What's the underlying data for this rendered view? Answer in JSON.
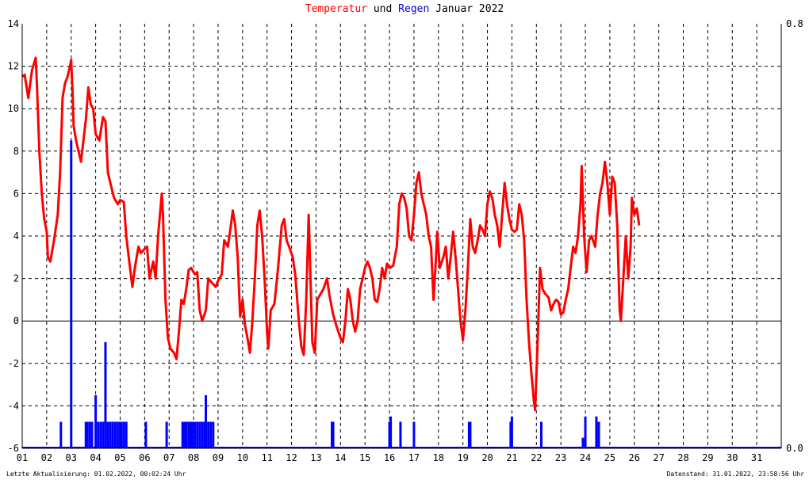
{
  "title": {
    "part1": "Temperatur",
    "part2": " und ",
    "part3": "Regen",
    "part4": " Januar 2022",
    "color_temp": "#ff0000",
    "color_rain": "#0000cc"
  },
  "footer": {
    "left": "Letzte Aktualisierung: 01.02.2022, 00:02:24 Uhr",
    "right": "Datenstand: 31.01.2022, 23:58:56 Uhr"
  },
  "chart_data": {
    "type": "line",
    "title": "Temperatur und Regen Januar 2022",
    "x_tick_labels": [
      "01",
      "02",
      "03",
      "04",
      "05",
      "06",
      "07",
      "08",
      "09",
      "10",
      "11",
      "12",
      "13",
      "14",
      "15",
      "16",
      "17",
      "18",
      "19",
      "20",
      "21",
      "22",
      "23",
      "24",
      "25",
      "26",
      "27",
      "28",
      "29",
      "30",
      "31"
    ],
    "xlim": [
      1,
      32
    ],
    "ylim": [
      -6,
      14
    ],
    "y_ticks": [
      -6,
      -4,
      -2,
      0,
      2,
      4,
      6,
      8,
      10,
      12,
      14
    ],
    "y2lim": [
      0,
      0.8
    ],
    "y2_tick_labels": [
      "0.0",
      "0.8"
    ],
    "grid": true,
    "series": [
      {
        "name": "Temperatur",
        "axis": "left",
        "color": "#ff0000",
        "points": [
          [
            1.0,
            11.5
          ],
          [
            1.1,
            11.6
          ],
          [
            1.25,
            10.5
          ],
          [
            1.4,
            11.8
          ],
          [
            1.55,
            12.4
          ],
          [
            1.6,
            11.2
          ],
          [
            1.7,
            8.0
          ],
          [
            1.8,
            6.0
          ],
          [
            1.9,
            4.8
          ],
          [
            2.0,
            4.2
          ],
          [
            2.05,
            3.0
          ],
          [
            2.15,
            2.8
          ],
          [
            2.3,
            3.8
          ],
          [
            2.45,
            5.0
          ],
          [
            2.55,
            7.0
          ],
          [
            2.65,
            10.5
          ],
          [
            2.75,
            11.2
          ],
          [
            2.85,
            11.5
          ],
          [
            2.95,
            12.0
          ],
          [
            3.0,
            12.3
          ],
          [
            3.05,
            11.0
          ],
          [
            3.1,
            9.2
          ],
          [
            3.2,
            8.5
          ],
          [
            3.3,
            8.0
          ],
          [
            3.4,
            7.5
          ],
          [
            3.5,
            8.5
          ],
          [
            3.6,
            9.5
          ],
          [
            3.7,
            11.0
          ],
          [
            3.8,
            10.2
          ],
          [
            3.9,
            10.0
          ],
          [
            4.0,
            8.8
          ],
          [
            4.15,
            8.5
          ],
          [
            4.3,
            9.6
          ],
          [
            4.4,
            9.4
          ],
          [
            4.5,
            7.0
          ],
          [
            4.6,
            6.5
          ],
          [
            4.75,
            5.8
          ],
          [
            4.9,
            5.5
          ],
          [
            5.0,
            5.7
          ],
          [
            5.15,
            5.6
          ],
          [
            5.25,
            4.0
          ],
          [
            5.35,
            3.0
          ],
          [
            5.5,
            1.6
          ],
          [
            5.6,
            2.5
          ],
          [
            5.75,
            3.5
          ],
          [
            5.85,
            3.2
          ],
          [
            6.0,
            3.4
          ],
          [
            6.1,
            3.5
          ],
          [
            6.2,
            2.0
          ],
          [
            6.35,
            2.8
          ],
          [
            6.45,
            2.0
          ],
          [
            6.55,
            4.0
          ],
          [
            6.7,
            6.0
          ],
          [
            6.75,
            5.0
          ],
          [
            6.85,
            1.0
          ],
          [
            6.95,
            -0.8
          ],
          [
            7.05,
            -1.3
          ],
          [
            7.2,
            -1.5
          ],
          [
            7.3,
            -1.8
          ],
          [
            7.4,
            -0.5
          ],
          [
            7.5,
            1.0
          ],
          [
            7.6,
            0.8
          ],
          [
            7.7,
            1.5
          ],
          [
            7.8,
            2.4
          ],
          [
            7.9,
            2.5
          ],
          [
            8.05,
            2.2
          ],
          [
            8.15,
            2.3
          ],
          [
            8.25,
            0.5
          ],
          [
            8.35,
            0.0
          ],
          [
            8.5,
            0.5
          ],
          [
            8.6,
            2.0
          ],
          [
            8.75,
            1.8
          ],
          [
            8.9,
            1.6
          ],
          [
            9.0,
            1.9
          ],
          [
            9.15,
            2.2
          ],
          [
            9.25,
            3.8
          ],
          [
            9.4,
            3.5
          ],
          [
            9.5,
            4.3
          ],
          [
            9.6,
            5.2
          ],
          [
            9.7,
            4.5
          ],
          [
            9.8,
            3.0
          ],
          [
            9.9,
            0.2
          ],
          [
            10.0,
            1.0
          ],
          [
            10.1,
            -0.2
          ],
          [
            10.2,
            -0.8
          ],
          [
            10.3,
            -1.5
          ],
          [
            10.4,
            0.0
          ],
          [
            10.5,
            2.0
          ],
          [
            10.6,
            4.5
          ],
          [
            10.7,
            5.2
          ],
          [
            10.8,
            4.0
          ],
          [
            10.9,
            2.0
          ],
          [
            11.0,
            -0.5
          ],
          [
            11.05,
            -1.3
          ],
          [
            11.15,
            0.5
          ],
          [
            11.3,
            0.8
          ],
          [
            11.45,
            2.5
          ],
          [
            11.6,
            4.5
          ],
          [
            11.7,
            4.8
          ],
          [
            11.8,
            3.8
          ],
          [
            11.9,
            3.5
          ],
          [
            12.05,
            3.0
          ],
          [
            12.15,
            2.2
          ],
          [
            12.3,
            0.0
          ],
          [
            12.4,
            -1.2
          ],
          [
            12.5,
            -1.6
          ],
          [
            12.6,
            1.0
          ],
          [
            12.7,
            5.0
          ],
          [
            12.75,
            3.0
          ],
          [
            12.85,
            -1.0
          ],
          [
            12.95,
            -1.5
          ],
          [
            13.05,
            1.0
          ],
          [
            13.2,
            1.3
          ],
          [
            13.3,
            1.5
          ],
          [
            13.45,
            2.0
          ],
          [
            13.55,
            1.2
          ],
          [
            13.7,
            0.3
          ],
          [
            13.85,
            -0.3
          ],
          [
            14.0,
            -0.8
          ],
          [
            14.1,
            -1.0
          ],
          [
            14.2,
            0.0
          ],
          [
            14.3,
            1.5
          ],
          [
            14.4,
            1.0
          ],
          [
            14.5,
            0.0
          ],
          [
            14.6,
            -0.5
          ],
          [
            14.7,
            0.0
          ],
          [
            14.8,
            1.5
          ],
          [
            14.9,
            2.0
          ],
          [
            15.0,
            2.5
          ],
          [
            15.1,
            2.8
          ],
          [
            15.2,
            2.5
          ],
          [
            15.3,
            2.0
          ],
          [
            15.4,
            1.0
          ],
          [
            15.5,
            0.9
          ],
          [
            15.6,
            1.5
          ],
          [
            15.7,
            2.5
          ],
          [
            15.8,
            2.0
          ],
          [
            15.9,
            2.7
          ],
          [
            16.0,
            2.5
          ],
          [
            16.15,
            2.6
          ],
          [
            16.3,
            3.5
          ],
          [
            16.4,
            5.5
          ],
          [
            16.5,
            6.0
          ],
          [
            16.6,
            5.8
          ],
          [
            16.7,
            5.3
          ],
          [
            16.8,
            4.0
          ],
          [
            16.9,
            3.8
          ],
          [
            17.0,
            5.0
          ],
          [
            17.1,
            6.5
          ],
          [
            17.2,
            7.0
          ],
          [
            17.3,
            6.0
          ],
          [
            17.4,
            5.5
          ],
          [
            17.5,
            5.0
          ],
          [
            17.6,
            4.0
          ],
          [
            17.7,
            3.5
          ],
          [
            17.8,
            1.0
          ],
          [
            17.9,
            3.0
          ],
          [
            17.95,
            4.2
          ],
          [
            18.05,
            2.5
          ],
          [
            18.2,
            3.0
          ],
          [
            18.3,
            3.5
          ],
          [
            18.4,
            2.0
          ],
          [
            18.5,
            3.0
          ],
          [
            18.6,
            4.2
          ],
          [
            18.7,
            3.0
          ],
          [
            18.8,
            1.5
          ],
          [
            18.9,
            0.0
          ],
          [
            19.0,
            -0.9
          ],
          [
            19.1,
            0.5
          ],
          [
            19.2,
            2.5
          ],
          [
            19.3,
            4.8
          ],
          [
            19.4,
            3.5
          ],
          [
            19.5,
            3.2
          ],
          [
            19.6,
            3.8
          ],
          [
            19.7,
            4.5
          ],
          [
            19.8,
            4.3
          ],
          [
            19.9,
            4.0
          ],
          [
            20.0,
            5.5
          ],
          [
            20.1,
            6.1
          ],
          [
            20.2,
            5.8
          ],
          [
            20.3,
            5.0
          ],
          [
            20.4,
            4.5
          ],
          [
            20.5,
            3.5
          ],
          [
            20.6,
            5.0
          ],
          [
            20.7,
            6.5
          ],
          [
            20.8,
            5.5
          ],
          [
            20.9,
            4.8
          ],
          [
            21.0,
            4.3
          ],
          [
            21.1,
            4.2
          ],
          [
            21.2,
            4.3
          ],
          [
            21.3,
            5.5
          ],
          [
            21.4,
            5.0
          ],
          [
            21.5,
            3.8
          ],
          [
            21.6,
            1.0
          ],
          [
            21.7,
            -1.0
          ],
          [
            21.8,
            -2.5
          ],
          [
            21.9,
            -3.8
          ],
          [
            21.95,
            -4.2
          ],
          [
            22.05,
            -1.0
          ],
          [
            22.15,
            2.5
          ],
          [
            22.25,
            1.5
          ],
          [
            22.35,
            1.3
          ],
          [
            22.5,
            1.1
          ],
          [
            22.6,
            0.5
          ],
          [
            22.7,
            0.8
          ],
          [
            22.8,
            1.0
          ],
          [
            22.9,
            0.9
          ],
          [
            23.0,
            0.3
          ],
          [
            23.1,
            0.4
          ],
          [
            23.2,
            1.0
          ],
          [
            23.3,
            1.5
          ],
          [
            23.4,
            2.5
          ],
          [
            23.5,
            3.5
          ],
          [
            23.6,
            3.2
          ],
          [
            23.7,
            4.0
          ],
          [
            23.8,
            5.5
          ],
          [
            23.85,
            7.3
          ],
          [
            23.95,
            4.0
          ],
          [
            24.05,
            2.3
          ],
          [
            24.15,
            3.8
          ],
          [
            24.25,
            4.0
          ],
          [
            24.4,
            3.5
          ],
          [
            24.5,
            5.0
          ],
          [
            24.6,
            6.0
          ],
          [
            24.7,
            6.5
          ],
          [
            24.8,
            7.5
          ],
          [
            24.9,
            6.5
          ],
          [
            25.0,
            5.0
          ],
          [
            25.1,
            6.8
          ],
          [
            25.2,
            6.5
          ],
          [
            25.3,
            4.5
          ],
          [
            25.4,
            0.5
          ],
          [
            25.45,
            0.0
          ],
          [
            25.55,
            2.0
          ],
          [
            25.65,
            4.0
          ],
          [
            25.75,
            2.0
          ],
          [
            25.85,
            3.5
          ],
          [
            25.9,
            5.8
          ],
          [
            26.0,
            5.0
          ],
          [
            26.1,
            5.3
          ],
          [
            26.2,
            4.5
          ]
        ]
      },
      {
        "name": "Regen",
        "axis": "right",
        "color": "#0000ff",
        "bars": [
          [
            2.58,
            0.05
          ],
          [
            3.0,
            0.58
          ],
          [
            3.6,
            0.05
          ],
          [
            3.65,
            0.05
          ],
          [
            3.75,
            0.05
          ],
          [
            3.85,
            0.05
          ],
          [
            4.0,
            0.1
          ],
          [
            4.1,
            0.05
          ],
          [
            4.2,
            0.05
          ],
          [
            4.3,
            0.05
          ],
          [
            4.4,
            0.2
          ],
          [
            4.5,
            0.05
          ],
          [
            4.6,
            0.05
          ],
          [
            4.7,
            0.05
          ],
          [
            4.8,
            0.05
          ],
          [
            4.9,
            0.05
          ],
          [
            5.0,
            0.05
          ],
          [
            5.05,
            0.05
          ],
          [
            5.15,
            0.05
          ],
          [
            5.25,
            0.05
          ],
          [
            6.05,
            0.05
          ],
          [
            6.9,
            0.05
          ],
          [
            7.55,
            0.05
          ],
          [
            7.62,
            0.05
          ],
          [
            7.7,
            0.05
          ],
          [
            7.8,
            0.05
          ],
          [
            7.88,
            0.05
          ],
          [
            7.95,
            0.05
          ],
          [
            8.05,
            0.05
          ],
          [
            8.15,
            0.05
          ],
          [
            8.25,
            0.05
          ],
          [
            8.35,
            0.05
          ],
          [
            8.45,
            0.05
          ],
          [
            8.5,
            0.1
          ],
          [
            8.6,
            0.05
          ],
          [
            8.7,
            0.05
          ],
          [
            8.8,
            0.05
          ],
          [
            13.65,
            0.05
          ],
          [
            13.7,
            0.05
          ],
          [
            16.0,
            0.05
          ],
          [
            16.05,
            0.06
          ],
          [
            16.45,
            0.05
          ],
          [
            17.0,
            0.05
          ],
          [
            19.25,
            0.05
          ],
          [
            19.3,
            0.05
          ],
          [
            20.95,
            0.05
          ],
          [
            21.0,
            0.06
          ],
          [
            22.2,
            0.05
          ],
          [
            23.9,
            0.02
          ],
          [
            24.0,
            0.06
          ],
          [
            24.45,
            0.06
          ],
          [
            24.55,
            0.05
          ]
        ]
      }
    ]
  }
}
